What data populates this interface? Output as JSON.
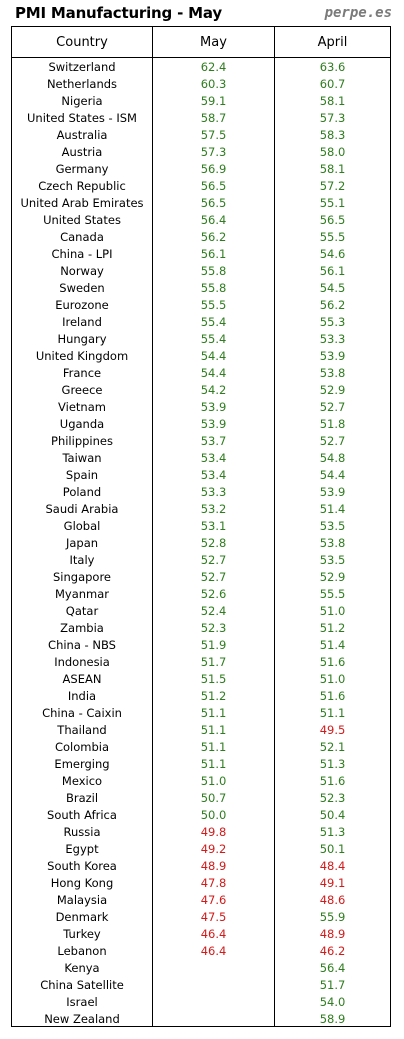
{
  "title": "PMI Manufacturing - May",
  "brand": "perpe.es",
  "colors": {
    "above50": "#2e7d1e",
    "below50": "#d21a1a"
  },
  "chart_data": {
    "type": "table",
    "columns": [
      "Country",
      "May",
      "April"
    ],
    "threshold": 50,
    "rows": [
      [
        "Switzerland",
        "62.4",
        "63.6"
      ],
      [
        "Netherlands",
        "60.3",
        "60.7"
      ],
      [
        "Nigeria",
        "59.1",
        "58.1"
      ],
      [
        "United States - ISM",
        "58.7",
        "57.3"
      ],
      [
        "Australia",
        "57.5",
        "58.3"
      ],
      [
        "Austria",
        "57.3",
        "58.0"
      ],
      [
        "Germany",
        "56.9",
        "58.1"
      ],
      [
        "Czech Republic",
        "56.5",
        "57.2"
      ],
      [
        "United Arab Emirates",
        "56.5",
        "55.1"
      ],
      [
        "United States",
        "56.4",
        "56.5"
      ],
      [
        "Canada",
        "56.2",
        "55.5"
      ],
      [
        "China - LPI",
        "56.1",
        "54.6"
      ],
      [
        "Norway",
        "55.8",
        "56.1"
      ],
      [
        "Sweden",
        "55.8",
        "54.5"
      ],
      [
        "Eurozone",
        "55.5",
        "56.2"
      ],
      [
        "Ireland",
        "55.4",
        "55.3"
      ],
      [
        "Hungary",
        "55.4",
        "53.3"
      ],
      [
        "United Kingdom",
        "54.4",
        "53.9"
      ],
      [
        "France",
        "54.4",
        "53.8"
      ],
      [
        "Greece",
        "54.2",
        "52.9"
      ],
      [
        "Vietnam",
        "53.9",
        "52.7"
      ],
      [
        "Uganda",
        "53.9",
        "51.8"
      ],
      [
        "Philippines",
        "53.7",
        "52.7"
      ],
      [
        "Taiwan",
        "53.4",
        "54.8"
      ],
      [
        "Spain",
        "53.4",
        "54.4"
      ],
      [
        "Poland",
        "53.3",
        "53.9"
      ],
      [
        "Saudi Arabia",
        "53.2",
        "51.4"
      ],
      [
        "Global",
        "53.1",
        "53.5"
      ],
      [
        "Japan",
        "52.8",
        "53.8"
      ],
      [
        "Italy",
        "52.7",
        "53.5"
      ],
      [
        "Singapore",
        "52.7",
        "52.9"
      ],
      [
        "Myanmar",
        "52.6",
        "55.5"
      ],
      [
        "Qatar",
        "52.4",
        "51.0"
      ],
      [
        "Zambia",
        "52.3",
        "51.2"
      ],
      [
        "China - NBS",
        "51.9",
        "51.4"
      ],
      [
        "Indonesia",
        "51.7",
        "51.6"
      ],
      [
        "ASEAN",
        "51.5",
        "51.0"
      ],
      [
        "India",
        "51.2",
        "51.6"
      ],
      [
        "China - Caixin",
        "51.1",
        "51.1"
      ],
      [
        "Thailand",
        "51.1",
        "49.5"
      ],
      [
        "Colombia",
        "51.1",
        "52.1"
      ],
      [
        "Emerging",
        "51.1",
        "51.3"
      ],
      [
        "Mexico",
        "51.0",
        "51.6"
      ],
      [
        "Brazil",
        "50.7",
        "52.3"
      ],
      [
        "South Africa",
        "50.0",
        "50.4"
      ],
      [
        "Russia",
        "49.8",
        "51.3"
      ],
      [
        "Egypt",
        "49.2",
        "50.1"
      ],
      [
        "South Korea",
        "48.9",
        "48.4"
      ],
      [
        "Hong Kong",
        "47.8",
        "49.1"
      ],
      [
        "Malaysia",
        "47.6",
        "48.6"
      ],
      [
        "Denmark",
        "47.5",
        "55.9"
      ],
      [
        "Turkey",
        "46.4",
        "48.9"
      ],
      [
        "Lebanon",
        "46.4",
        "46.2"
      ],
      [
        "Kenya",
        "",
        "56.4"
      ],
      [
        "China Satellite",
        "",
        "51.7"
      ],
      [
        "Israel",
        "",
        "54.0"
      ],
      [
        "New Zealand",
        "",
        "58.9"
      ]
    ]
  }
}
